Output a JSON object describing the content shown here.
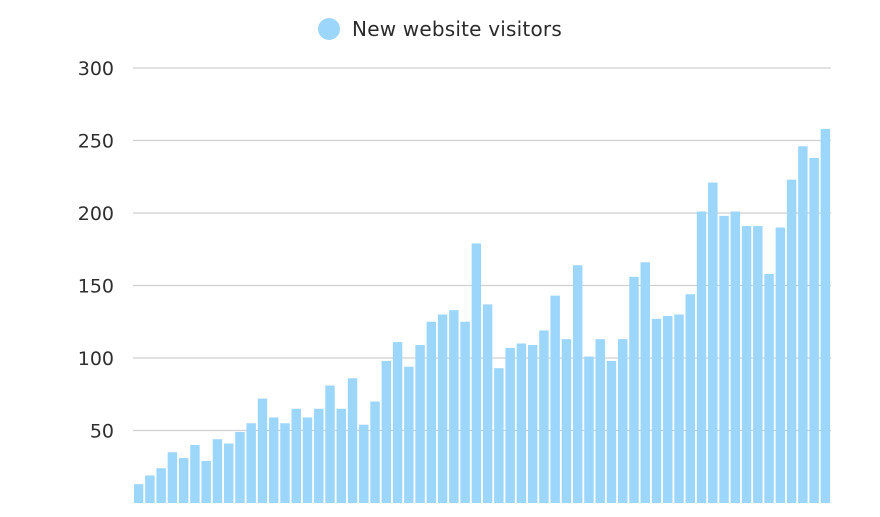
{
  "chart_data": {
    "type": "bar",
    "series": [
      {
        "name": "New website visitors",
        "color": "#9dd6fb",
        "values": [
          13,
          19,
          24,
          35,
          31,
          40,
          29,
          44,
          41,
          49,
          55,
          72,
          59,
          55,
          65,
          59,
          65,
          81,
          65,
          86,
          54,
          70,
          98,
          111,
          94,
          109,
          125,
          130,
          133,
          125,
          179,
          137,
          93,
          107,
          110,
          109,
          119,
          143,
          113,
          164,
          101,
          113,
          98,
          113,
          156,
          166,
          127,
          129,
          130,
          144,
          201,
          221,
          198,
          201,
          191,
          191,
          158,
          190,
          223,
          246,
          238,
          258
        ]
      }
    ],
    "yticks": [
      50,
      100,
      150,
      200,
      250,
      300
    ],
    "ylim": [
      0,
      300
    ],
    "grid": true,
    "legend_position": "top-center"
  }
}
